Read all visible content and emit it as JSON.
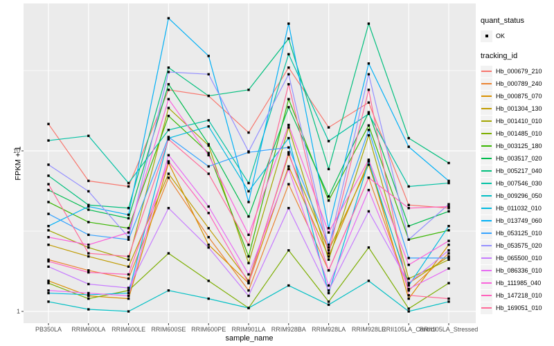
{
  "chart_data": {
    "type": "line",
    "title": "",
    "xlabel": "sample_name",
    "ylabel": "FPKM + 1",
    "y_scale": "log10",
    "y_tick_values": [
      1,
      10
    ],
    "y_tick_labels": [
      "1",
      "10"
    ],
    "y_minor_gridlines": [
      3.162,
      31.623
    ],
    "ylim": [
      0.85,
      83
    ],
    "grid": "on",
    "panel_bg": "#EBEBEB",
    "grid_color": "#FFFFFF",
    "marker_color": "#000000",
    "categories": [
      "PB350LA",
      "RRIM600LA",
      "RRIM600LE",
      "RRIM600SE",
      "RRIM600PE",
      "RRIM901LA",
      "RRIM928BA",
      "RRIM928LA",
      "RRIM928LE",
      "RRII105LA_Control",
      "RRII105LA_Stressed"
    ],
    "legend": {
      "position": "right",
      "quant_title": "quant_status",
      "quant_items": [
        {
          "label": "OK",
          "shape": "point"
        }
      ],
      "series_title": "tracking_id"
    },
    "series": [
      {
        "name": "Hb_000679_210",
        "color": "#F8766D",
        "values": [
          14.7,
          6.5,
          6.0,
          24,
          22,
          13,
          33,
          14,
          20,
          4.6,
          4.4
        ]
      },
      {
        "name": "Hb_000789_240",
        "color": "#EA8331",
        "values": [
          2.1,
          1.8,
          1.6,
          6.8,
          2.9,
          1.35,
          6.2,
          1.8,
          6.8,
          1.35,
          2.3
        ]
      },
      {
        "name": "Hb_000875_070",
        "color": "#D89000",
        "values": [
          1.55,
          1.25,
          1.2,
          8.4,
          2.6,
          1.5,
          8.0,
          2.2,
          8.6,
          1.2,
          2.6
        ]
      },
      {
        "name": "Hb_001304_130",
        "color": "#C09B00",
        "values": [
          2.6,
          2.2,
          1.9,
          7.2,
          3.3,
          1.55,
          9.5,
          2.4,
          8.2,
          1.5,
          2.2
        ]
      },
      {
        "name": "Hb_001410_010",
        "color": "#A3A500",
        "values": [
          3.2,
          2.5,
          2.1,
          18.5,
          10.8,
          2.0,
          14,
          2.1,
          12.5,
          1.6,
          2.1
        ]
      },
      {
        "name": "Hb_001485_010",
        "color": "#7CAE00",
        "values": [
          1.5,
          1.2,
          1.35,
          2.3,
          1.55,
          1.05,
          2.4,
          1.15,
          2.5,
          1.04,
          1.5
        ]
      },
      {
        "name": "Hb_003125_180",
        "color": "#39B600",
        "values": [
          4.8,
          3.6,
          3.3,
          16.5,
          9.7,
          2.2,
          21,
          4.9,
          14.4,
          2.8,
          3.2
        ]
      },
      {
        "name": "Hb_003517_020",
        "color": "#00BB4E",
        "values": [
          5.7,
          4.3,
          3.8,
          26,
          11,
          3.9,
          18.7,
          5.2,
          17.4,
          3.4,
          4.2
        ]
      },
      {
        "name": "Hb_005217_040",
        "color": "#00BF7D",
        "values": [
          7.0,
          4.6,
          4.4,
          33,
          22,
          24,
          50,
          7.7,
          62,
          12,
          8.4
        ]
      },
      {
        "name": "Hb_007546_030",
        "color": "#00C1A3",
        "values": [
          11.6,
          12.4,
          6.3,
          13.5,
          15.5,
          6.3,
          40,
          11.5,
          17,
          6.0,
          6.3
        ]
      },
      {
        "name": "Hb_009296_050",
        "color": "#00BFC4",
        "values": [
          1.15,
          1.03,
          1.0,
          1.35,
          1.2,
          1.05,
          1.45,
          1.1,
          1.55,
          1.0,
          1.15
        ]
      },
      {
        "name": "Hb_011032_010",
        "color": "#00BAE0",
        "values": [
          1.3,
          1.27,
          1.3,
          12,
          14.2,
          5.6,
          12,
          1.3,
          8.6,
          1.45,
          3.4
        ]
      },
      {
        "name": "Hb_013749_060",
        "color": "#00B0F6",
        "values": [
          3.4,
          4.5,
          4.0,
          67,
          39,
          4.8,
          62,
          3.3,
          35,
          10.6,
          6.5
        ]
      },
      {
        "name": "Hb_053125_010",
        "color": "#35A2FF",
        "values": [
          4.05,
          3.0,
          2.8,
          12.2,
          8.0,
          9.8,
          10.5,
          2.6,
          13.5,
          2.15,
          2.15
        ]
      },
      {
        "name": "Hb_053575_020",
        "color": "#9590FF",
        "values": [
          8.2,
          5.6,
          2.9,
          31,
          30,
          9.9,
          30,
          2.5,
          30,
          2.8,
          4.65
        ]
      },
      {
        "name": "Hb_065500_010",
        "color": "#C77CFF",
        "values": [
          1.9,
          1.48,
          1.4,
          4.4,
          2.5,
          1.25,
          4.4,
          1.35,
          4.2,
          1.5,
          2.4
        ]
      },
      {
        "name": "Hb_086336_010",
        "color": "#E76BF3",
        "values": [
          1.35,
          1.3,
          1.25,
          9.4,
          4.5,
          1.7,
          7.7,
          1.45,
          5.7,
          1.38,
          1.85
        ]
      },
      {
        "name": "Hb_111985_040",
        "color": "#FA62DB",
        "values": [
          2.9,
          2.6,
          3.1,
          21,
          9.4,
          3.0,
          14.5,
          3.1,
          8.8,
          1.95,
          2.75
        ]
      },
      {
        "name": "Hb_147218_010",
        "color": "#FF62BC",
        "values": [
          2.05,
          1.75,
          1.7,
          8.6,
          4.1,
          1.5,
          9.8,
          1.8,
          6.8,
          4.4,
          4.5
        ]
      },
      {
        "name": "Hb_169051_010",
        "color": "#FF6A98",
        "values": [
          6.2,
          2.3,
          2.2,
          11.8,
          7.2,
          2.6,
          26,
          2.3,
          24,
          1.26,
          1.2
        ]
      }
    ]
  }
}
